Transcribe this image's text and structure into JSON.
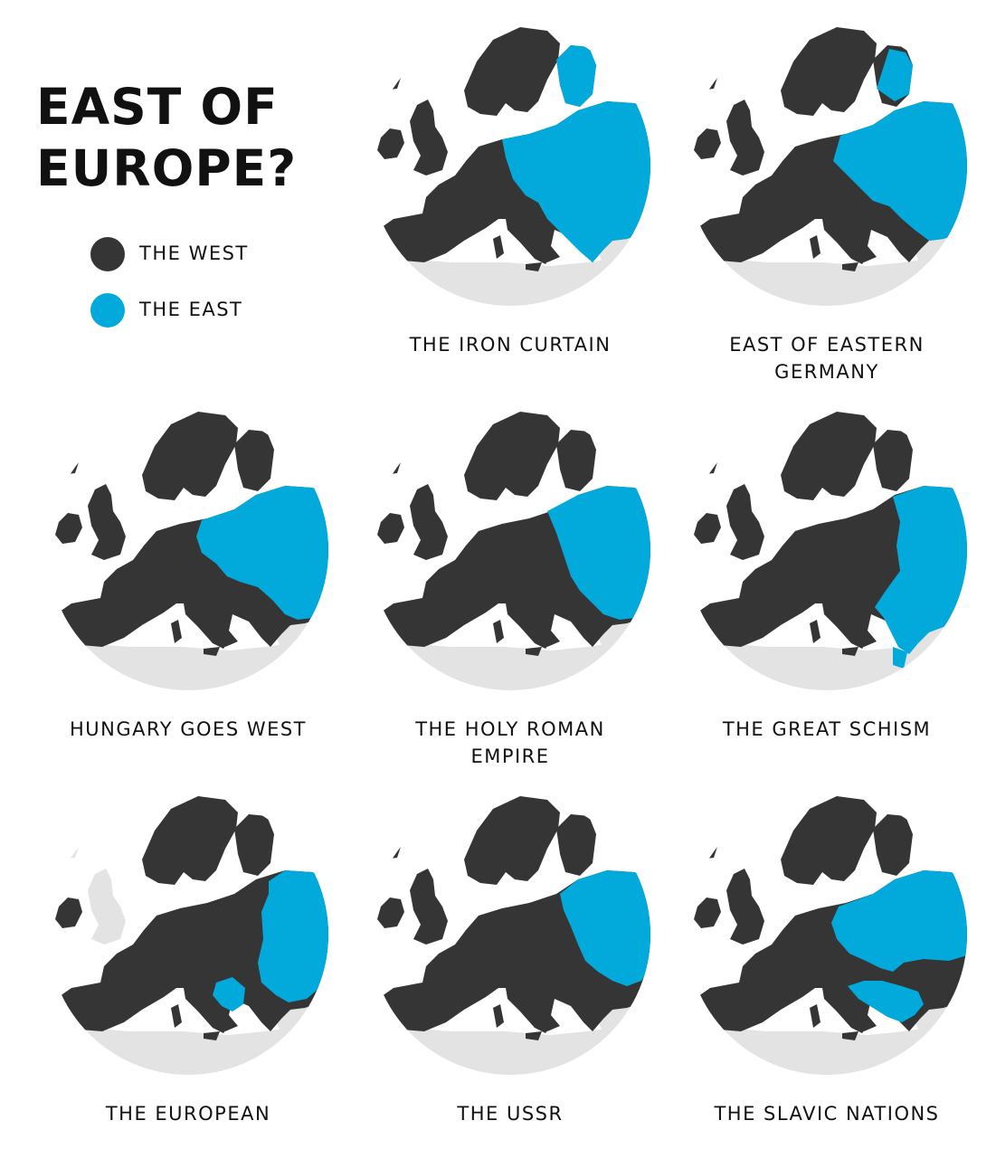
{
  "title": {
    "line1": "EAST OF",
    "line2": "EUROPE?"
  },
  "colors": {
    "west": "#353535",
    "east": "#02aadc",
    "nonEurope": "#e3e3e3",
    "background": "#ffffff"
  },
  "legend": [
    {
      "label": "THE WEST",
      "color": "#353535"
    },
    {
      "label": "THE EAST",
      "color": "#02aadc"
    }
  ],
  "maps": [
    {
      "caption": [
        "THE IRON CURTAIN"
      ],
      "variant": "iron-curtain"
    },
    {
      "caption": [
        "EAST OF EASTERN",
        "GERMANY"
      ],
      "variant": "east-of-germany"
    },
    {
      "caption": [
        "HUNGARY GOES WEST"
      ],
      "variant": "hungary-west"
    },
    {
      "caption": [
        "THE HOLY ROMAN",
        "EMPIRE"
      ],
      "variant": "holy-roman"
    },
    {
      "caption": [
        "THE GREAT SCHISM"
      ],
      "variant": "great-schism"
    },
    {
      "caption": [
        "THE EUROPEAN"
      ],
      "variant": "european"
    },
    {
      "caption": [
        "THE USSR"
      ],
      "variant": "ussr"
    },
    {
      "caption": [
        "THE SLAVIC NATIONS"
      ],
      "variant": "slavic"
    }
  ]
}
